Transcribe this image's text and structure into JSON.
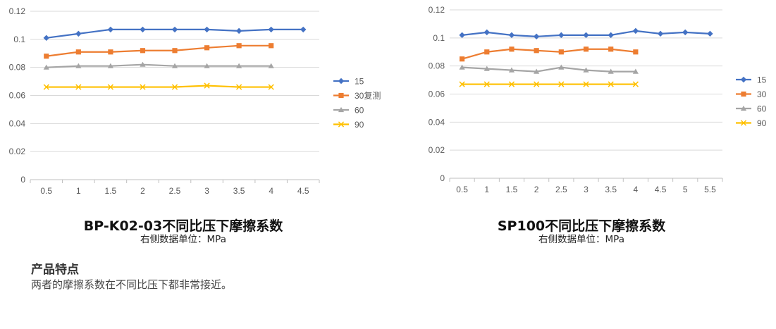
{
  "chart_data": [
    {
      "type": "line",
      "title": "BP-K02-03不同比压下摩擦系数",
      "subtitle": "右侧数据单位：MPa",
      "categories": [
        "0.5",
        "1",
        "1.5",
        "2",
        "2.5",
        "3",
        "3.5",
        "4",
        "4.5"
      ],
      "ylim": [
        0,
        0.12
      ],
      "yticks": [
        "0",
        "0.02",
        "0.04",
        "0.06",
        "0.08",
        "0.1",
        "0.12"
      ],
      "grid": true,
      "legend_position": "right",
      "series": [
        {
          "name": "15",
          "color": "#4472C4",
          "marker": "diamond",
          "values": [
            0.101,
            0.104,
            0.107,
            0.107,
            0.107,
            0.107,
            0.106,
            0.107,
            0.107
          ]
        },
        {
          "name": "30复测",
          "color": "#ED7D31",
          "marker": "square",
          "values": [
            0.088,
            0.091,
            0.091,
            0.092,
            0.092,
            0.094,
            0.0955,
            0.0955,
            null
          ]
        },
        {
          "name": "60",
          "color": "#A5A5A5",
          "marker": "triangle",
          "values": [
            0.08,
            0.081,
            0.081,
            0.082,
            0.081,
            0.081,
            0.081,
            0.081,
            null
          ]
        },
        {
          "name": "90",
          "color": "#FFC000",
          "marker": "x",
          "values": [
            0.066,
            0.066,
            0.066,
            0.066,
            0.066,
            0.067,
            0.066,
            0.066,
            null
          ]
        }
      ]
    },
    {
      "type": "line",
      "title": "SP100不同比压下摩擦系数",
      "subtitle": "右侧数据单位：MPa",
      "categories": [
        "0.5",
        "1",
        "1.5",
        "2",
        "2.5",
        "3",
        "3.5",
        "4",
        "4.5",
        "5",
        "5.5"
      ],
      "ylim": [
        0,
        0.12
      ],
      "yticks": [
        "0",
        "0.02",
        "0.04",
        "0.06",
        "0.08",
        "0.1",
        "0.12"
      ],
      "grid": true,
      "legend_position": "right",
      "series": [
        {
          "name": "15",
          "color": "#4472C4",
          "marker": "diamond",
          "values": [
            0.102,
            0.104,
            0.102,
            0.101,
            0.102,
            0.102,
            0.102,
            0.105,
            0.103,
            0.104,
            0.103
          ]
        },
        {
          "name": "30",
          "color": "#ED7D31",
          "marker": "square",
          "values": [
            0.085,
            0.09,
            0.092,
            0.091,
            0.09,
            0.092,
            0.092,
            0.09,
            null,
            null,
            null
          ]
        },
        {
          "name": "60",
          "color": "#A5A5A5",
          "marker": "triangle",
          "values": [
            0.079,
            0.078,
            0.077,
            0.076,
            0.079,
            0.077,
            0.076,
            0.076,
            null,
            null,
            null
          ]
        },
        {
          "name": "90",
          "color": "#FFC000",
          "marker": "x",
          "values": [
            0.067,
            0.067,
            0.067,
            0.067,
            0.067,
            0.067,
            0.067,
            0.067,
            null,
            null,
            null
          ]
        }
      ]
    }
  ],
  "features": {
    "heading": "产品特点",
    "text": "两者的摩擦系数在不同比压下都非常接近。"
  }
}
